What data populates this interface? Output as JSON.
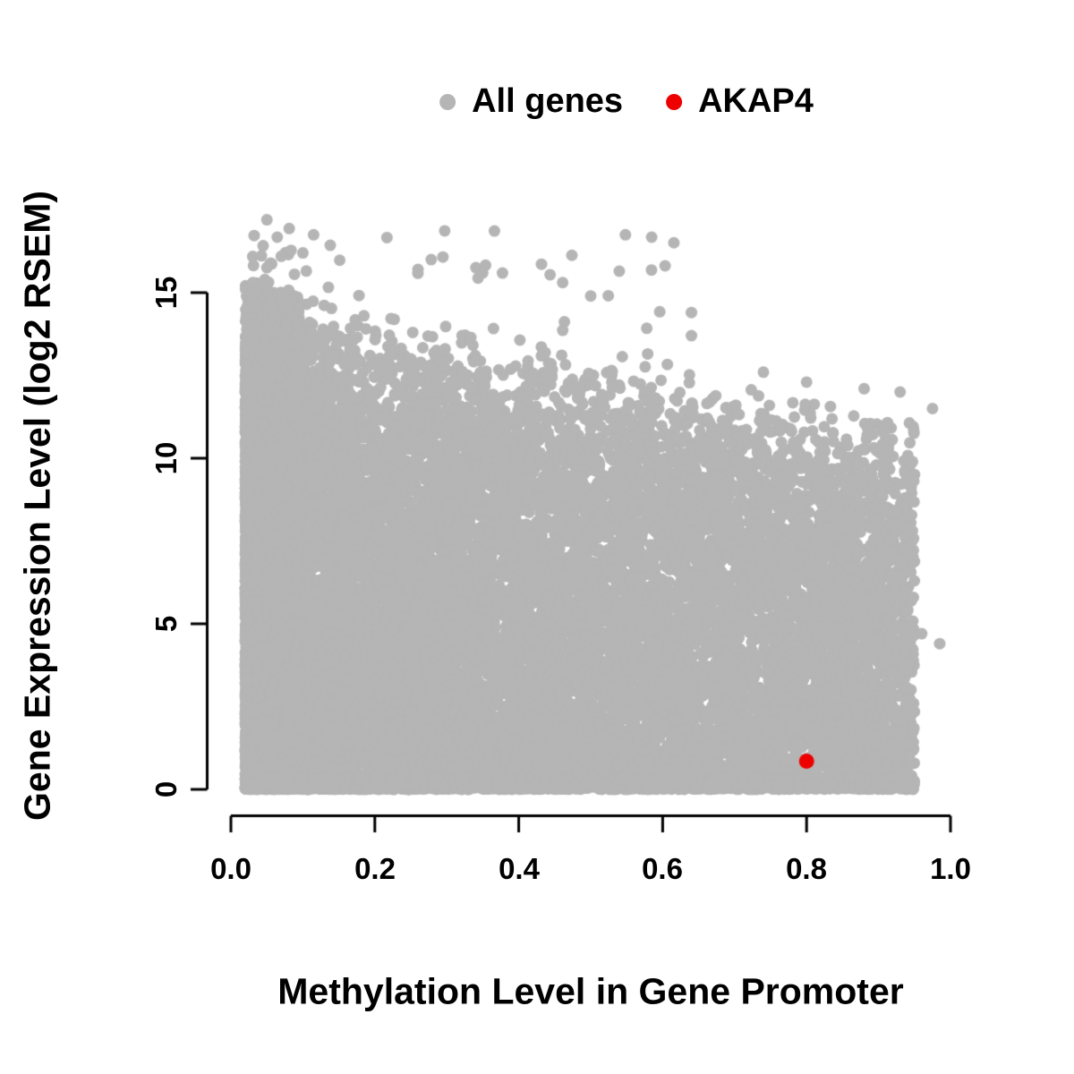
{
  "figure": {
    "background": "#ffffff",
    "text_color": "#000000"
  },
  "legend": {
    "position": "top-center",
    "items": [
      {
        "label": "All genes",
        "color": "#b5b5b5"
      },
      {
        "label": "AKAP4",
        "color": "#ee0000"
      }
    ]
  },
  "chart_data": {
    "type": "scatter",
    "title": "",
    "xlabel": "Methylation Level in Gene Promoter",
    "ylabel": "Gene Expression Level (log2 RSEM)",
    "xlim": [
      0,
      1
    ],
    "ylim": [
      0,
      17.5
    ],
    "grid": false,
    "legend_position": "top-center",
    "x_ticks": [
      0,
      0.2,
      0.4,
      0.6,
      0.8,
      1.0
    ],
    "x_tick_labels": [
      "0.0",
      "0.2",
      "0.4",
      "0.6",
      "0.8",
      "1.0"
    ],
    "y_ticks": [
      0,
      5,
      10,
      15
    ],
    "y_tick_labels": [
      "0",
      "5",
      "10",
      "15"
    ],
    "series": [
      {
        "name": "All genes",
        "color": "#b5b5b5",
        "marker": "circle",
        "marker_px_radius": 6.5,
        "distribution": {
          "note": "dense cloud of ~20000 genes; x from ~0.02 to ~0.95; y from 0 up to an upper envelope that decreases from ~15.5 at low methylation to ~11.5 at high methylation; very dense solid column at x<0.1 spanning full y range; heavy band of points at y~0 across all x",
          "x_min": 0.02,
          "x_max": 0.95,
          "envelope_y_at_x0": 15.3,
          "envelope_slope": -4.0,
          "n_main": 16000,
          "n_left_column": 4000,
          "n_bottom_band": 2500,
          "n_outliers": 55,
          "y_max_outlier": 17.2
        },
        "notable_points": [
          [
            0.05,
            17.2
          ],
          [
            0.07,
            16.1
          ],
          [
            0.1,
            16.2
          ],
          [
            0.26,
            15.7
          ],
          [
            0.35,
            15.6
          ],
          [
            0.5,
            14.9
          ],
          [
            0.64,
            14.4
          ],
          [
            0.64,
            13.7
          ],
          [
            0.74,
            12.6
          ],
          [
            0.8,
            12.3
          ],
          [
            0.88,
            12.1
          ],
          [
            0.93,
            12.0
          ],
          [
            0.975,
            11.5
          ],
          [
            0.985,
            4.4
          ],
          [
            0.96,
            4.7
          ]
        ]
      },
      {
        "name": "AKAP4",
        "color": "#ee0000",
        "marker": "circle",
        "marker_px_radius": 8.5,
        "points": [
          [
            0.8,
            0.85
          ]
        ]
      }
    ]
  }
}
